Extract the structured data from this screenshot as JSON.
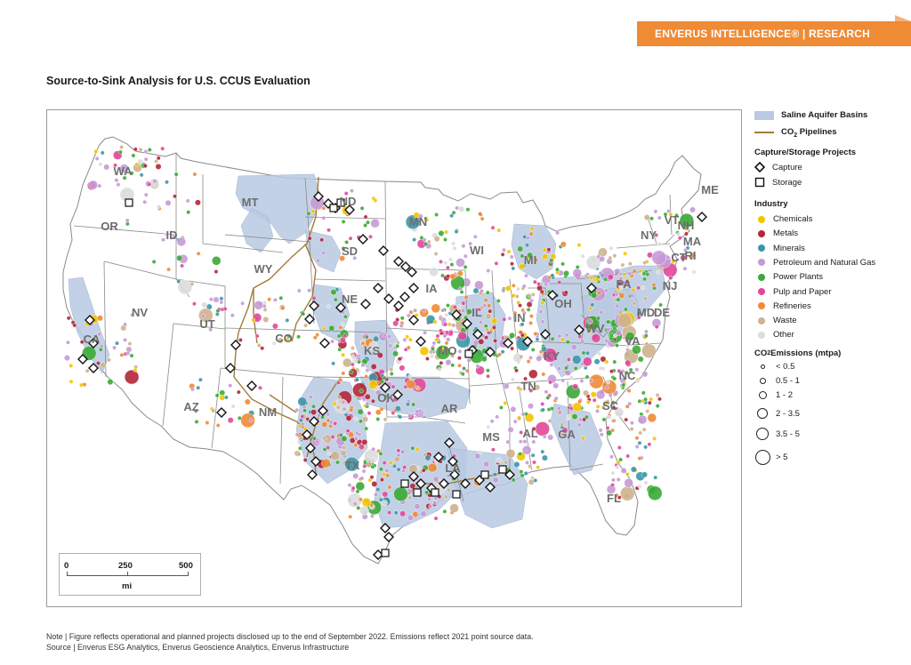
{
  "header": {
    "banner": "ENVERUS INTELLIGENCE® | RESEARCH"
  },
  "title": "Source-to-Sink Analysis for U.S. CCUS Evaluation",
  "colors": {
    "banner": "#ef8a35",
    "aquifer": "#b9c9e2",
    "pipeline": "#a07c3a",
    "chemicals": "#f2c400",
    "metals": "#b3263a",
    "minerals": "#3c97a8",
    "petroleum": "#c59ad6",
    "power": "#3aaa35",
    "pulp": "#e0489a",
    "refineries": "#ef8a35",
    "waste": "#cdb38e",
    "other": "#dcdcdc"
  },
  "map": {
    "states": [
      {
        "abbr": "WA"
      },
      {
        "abbr": "OR"
      },
      {
        "abbr": "ID"
      },
      {
        "abbr": "MT"
      },
      {
        "abbr": "WY"
      },
      {
        "abbr": "NV"
      },
      {
        "abbr": "CA"
      },
      {
        "abbr": "UT"
      },
      {
        "abbr": "CO"
      },
      {
        "abbr": "AZ"
      },
      {
        "abbr": "NM"
      },
      {
        "abbr": "ND"
      },
      {
        "abbr": "SD"
      },
      {
        "abbr": "NE"
      },
      {
        "abbr": "KS"
      },
      {
        "abbr": "OK"
      },
      {
        "abbr": "TX"
      },
      {
        "abbr": "MN"
      },
      {
        "abbr": "IA"
      },
      {
        "abbr": "MO"
      },
      {
        "abbr": "AR"
      },
      {
        "abbr": "LA"
      },
      {
        "abbr": "WI"
      },
      {
        "abbr": "IL"
      },
      {
        "abbr": "MS"
      },
      {
        "abbr": "MI"
      },
      {
        "abbr": "IN"
      },
      {
        "abbr": "OH"
      },
      {
        "abbr": "KY"
      },
      {
        "abbr": "TN"
      },
      {
        "abbr": "AL"
      },
      {
        "abbr": "GA"
      },
      {
        "abbr": "FL"
      },
      {
        "abbr": "SC"
      },
      {
        "abbr": "NC"
      },
      {
        "abbr": "VA"
      },
      {
        "abbr": "WV"
      },
      {
        "abbr": "PA"
      },
      {
        "abbr": "NY"
      },
      {
        "abbr": "MD"
      },
      {
        "abbr": "DE"
      },
      {
        "abbr": "NJ"
      },
      {
        "abbr": "CT"
      },
      {
        "abbr": "RI"
      },
      {
        "abbr": "MA"
      },
      {
        "abbr": "VT"
      },
      {
        "abbr": "NH"
      },
      {
        "abbr": "ME"
      }
    ],
    "scale": {
      "ticks": [
        "0",
        "250",
        "500"
      ],
      "unit": "mi"
    }
  },
  "legend": {
    "aquifer": "Saline Aquifer Basins",
    "pipelines_prefix": "CO",
    "pipelines_sub": "2",
    "pipelines_suffix": " Pipelines",
    "projects_heading": "Capture/Storage Projects",
    "capture": "Capture",
    "storage": "Storage",
    "industry_heading": "Industry",
    "industries": [
      {
        "label": "Chemicals",
        "color": "#f2c400"
      },
      {
        "label": "Metals",
        "color": "#b3263a"
      },
      {
        "label": "Minerals",
        "color": "#3c97a8"
      },
      {
        "label": "Petroleum and Natural Gas",
        "color": "#c59ad6"
      },
      {
        "label": "Power Plants",
        "color": "#3aaa35"
      },
      {
        "label": "Pulp and Paper",
        "color": "#e0489a"
      },
      {
        "label": "Refineries",
        "color": "#ef8a35"
      },
      {
        "label": "Waste",
        "color": "#cdb38e"
      },
      {
        "label": "Other",
        "color": "#dcdcdc"
      }
    ],
    "emissions_prefix": "CO",
    "emissions_sub": "2",
    "emissions_suffix": " Emissions (mtpa)",
    "sizes": [
      "< 0.5",
      "0.5 - 1",
      "1 - 2",
      "2 - 3.5",
      "3.5 - 5",
      "> 5"
    ]
  },
  "footnote": {
    "note": "Note | Figure reflects operational and planned projects disclosed up to the end of September 2022. Emissions reflect 2021 point source data.",
    "source": "Source | Enverus ESG Analytics, Enverus Geoscience Analytics, Enverus Infrastructure"
  }
}
